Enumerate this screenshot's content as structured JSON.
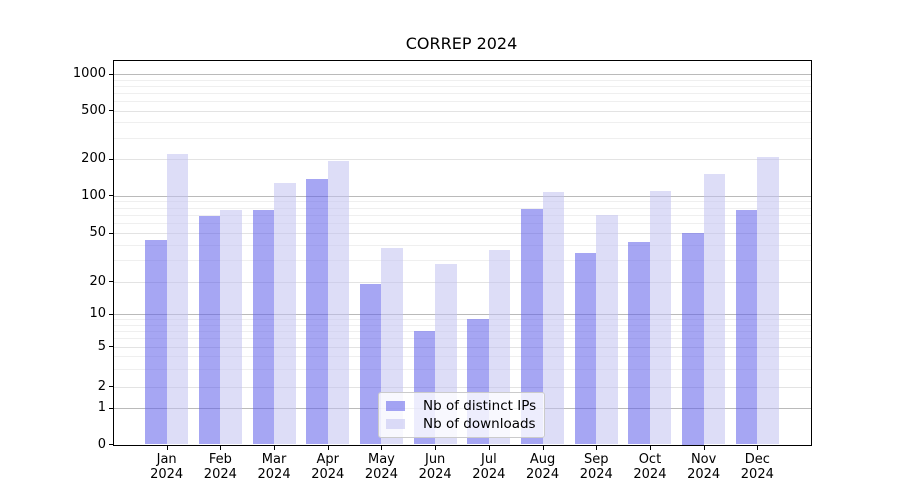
{
  "chart_data": {
    "type": "bar",
    "title": "CORREP 2024",
    "categories": [
      "Jan",
      "Feb",
      "Mar",
      "Apr",
      "May",
      "Jun",
      "Jul",
      "Aug",
      "Sep",
      "Oct",
      "Nov",
      "Dec"
    ],
    "year": "2024",
    "series": [
      {
        "name": "Nb of distinct IPs",
        "key": "distinct-ips",
        "color": "#5c5ce9",
        "values": [
          44,
          68,
          76,
          138,
          19,
          7,
          9,
          78,
          34,
          42,
          50,
          77
        ]
      },
      {
        "name": "Nb of downloads",
        "key": "downloads",
        "color": "#c1c1f1",
        "values": [
          220,
          76,
          128,
          192,
          38,
          28,
          36,
          107,
          70,
          110,
          150,
          210
        ]
      }
    ],
    "yticks": [
      0,
      1,
      2,
      5,
      10,
      20,
      50,
      100,
      200,
      500,
      1000
    ],
    "yscale": "symlog",
    "ylim": [
      0,
      1280
    ],
    "grid": true,
    "legend_position": "lower-center",
    "bar_alpha": 0.55
  }
}
